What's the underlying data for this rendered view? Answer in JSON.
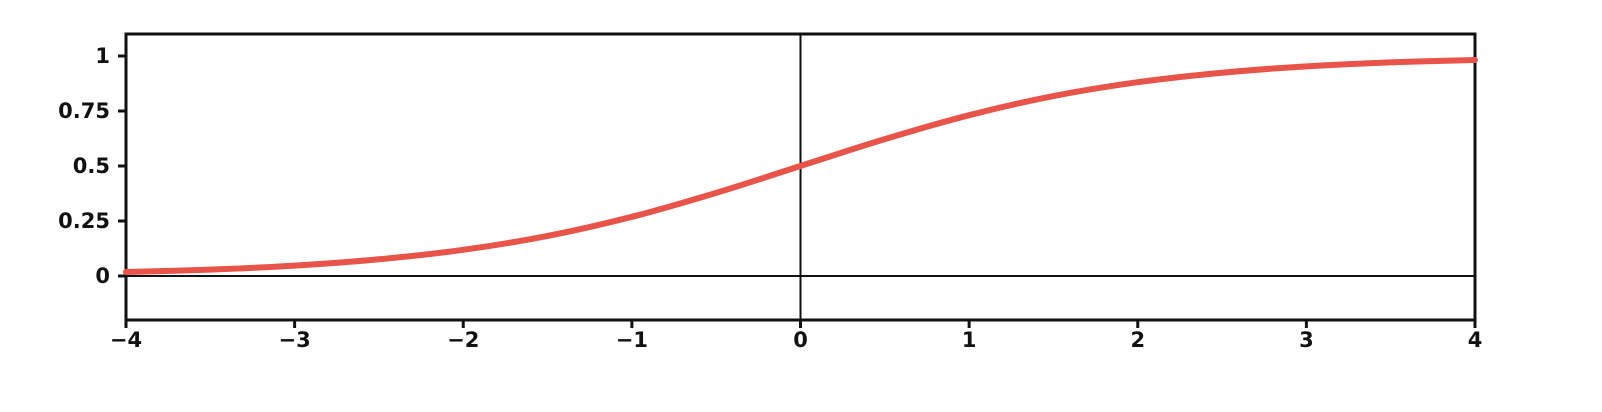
{
  "chart_data": {
    "type": "line",
    "title": "",
    "xlabel": "",
    "ylabel": "",
    "xlim": [
      -4,
      4
    ],
    "ylim": [
      -0.2,
      1.1
    ],
    "x_ticks": [
      -4,
      -3,
      -2,
      -1,
      0,
      1,
      2,
      3,
      4
    ],
    "x_tick_labels": [
      "−4",
      "−3",
      "−2",
      "−1",
      "0",
      "1",
      "2",
      "3",
      "4"
    ],
    "y_ticks": [
      0,
      0.25,
      0.5,
      0.75,
      1
    ],
    "y_tick_labels": [
      "0",
      "0.25",
      "0.5",
      "0.75",
      "1"
    ],
    "grid": false,
    "reference_lines": {
      "x": 0,
      "y": 0
    },
    "series": [
      {
        "color": "#e8534a",
        "x": [
          -4,
          -3.5,
          -3,
          -2.5,
          -2,
          -1.5,
          -1,
          -0.5,
          0,
          0.5,
          1,
          1.5,
          2,
          2.5,
          3,
          3.5,
          4
        ],
        "y": [
          0.018,
          0.029,
          0.047,
          0.076,
          0.119,
          0.182,
          0.269,
          0.378,
          0.5,
          0.622,
          0.731,
          0.818,
          0.881,
          0.924,
          0.953,
          0.971,
          0.982
        ]
      }
    ]
  }
}
